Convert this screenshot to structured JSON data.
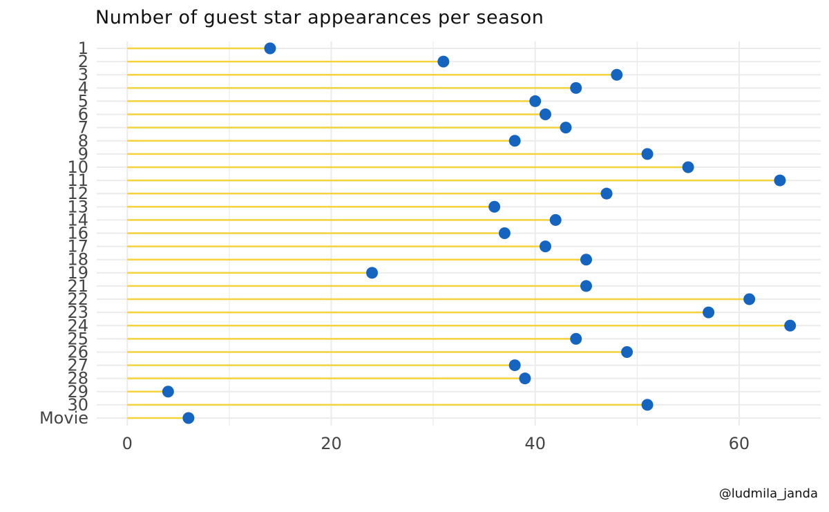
{
  "chart_data": {
    "type": "lollipop",
    "title": "Number of guest star appearances per season",
    "categories": [
      "1",
      "2",
      "3",
      "4",
      "5",
      "6",
      "7",
      "8",
      "9",
      "10",
      "11",
      "12",
      "13",
      "14",
      "16",
      "17",
      "18",
      "19",
      "21",
      "22",
      "23",
      "24",
      "25",
      "26",
      "27",
      "28",
      "29",
      "30",
      "Movie"
    ],
    "values": [
      14,
      31,
      48,
      44,
      40,
      41,
      43,
      38,
      51,
      55,
      64,
      47,
      36,
      42,
      37,
      41,
      45,
      24,
      45,
      61,
      57,
      65,
      44,
      49,
      38,
      39,
      4,
      51,
      6
    ],
    "xlim": [
      -3,
      68
    ],
    "xticks": [
      0,
      20,
      40,
      60
    ],
    "xticks_labels": [
      "0",
      "20",
      "40",
      "60"
    ],
    "grid": true,
    "colors": {
      "stem": "#f5d13a",
      "point": "#1565c0",
      "grid": "#ebebeb",
      "text": "#444444"
    }
  },
  "credit": "@ludmila_janda"
}
